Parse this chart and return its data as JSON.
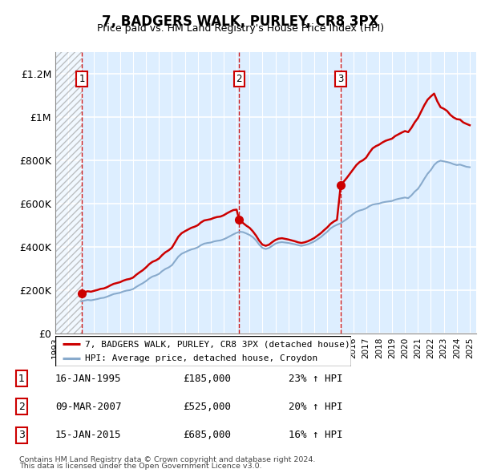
{
  "title": "7, BADGERS WALK, PURLEY, CR8 3PX",
  "subtitle": "Price paid vs. HM Land Registry's House Price Index (HPI)",
  "ylim": [
    0,
    1300000
  ],
  "xlim_start": 1993.0,
  "xlim_end": 2025.5,
  "yticks": [
    0,
    200000,
    400000,
    600000,
    800000,
    1000000,
    1200000
  ],
  "ytick_labels": [
    "£0",
    "£200K",
    "£400K",
    "£600K",
    "£800K",
    "£1M",
    "£1.2M"
  ],
  "sales": [
    {
      "date": "16-JAN-1995",
      "year": 1995.04,
      "price": 185000,
      "label": "1",
      "pct": "23%",
      "arrow": "↑"
    },
    {
      "date": "09-MAR-2007",
      "year": 2007.19,
      "price": 525000,
      "label": "2",
      "pct": "20%",
      "arrow": "↑"
    },
    {
      "date": "15-JAN-2015",
      "year": 2015.04,
      "price": 685000,
      "label": "3",
      "pct": "16%",
      "arrow": "↑"
    }
  ],
  "property_line_color": "#cc0000",
  "hpi_line_color": "#88aacc",
  "sale_marker_color": "#cc0000",
  "vline_color": "#cc0000",
  "bg_color": "#ddeeff",
  "grid_color": "#ffffff",
  "legend_line1": "7, BADGERS WALK, PURLEY, CR8 3PX (detached house)",
  "legend_line2": "HPI: Average price, detached house, Croydon",
  "footnote1": "Contains HM Land Registry data © Crown copyright and database right 2024.",
  "footnote2": "This data is licensed under the Open Government Licence v3.0.",
  "hpi_data": [
    [
      1995.0,
      148000
    ],
    [
      1995.25,
      152000
    ],
    [
      1995.5,
      155000
    ],
    [
      1995.75,
      153000
    ],
    [
      1996.0,
      156000
    ],
    [
      1996.25,
      159000
    ],
    [
      1996.5,
      163000
    ],
    [
      1996.75,
      165000
    ],
    [
      1997.0,
      170000
    ],
    [
      1997.25,
      176000
    ],
    [
      1997.5,
      182000
    ],
    [
      1997.75,
      185000
    ],
    [
      1998.0,
      188000
    ],
    [
      1998.25,
      194000
    ],
    [
      1998.5,
      198000
    ],
    [
      1998.75,
      200000
    ],
    [
      1999.0,
      205000
    ],
    [
      1999.25,
      215000
    ],
    [
      1999.5,
      224000
    ],
    [
      1999.75,
      232000
    ],
    [
      2000.0,
      242000
    ],
    [
      2000.25,
      254000
    ],
    [
      2000.5,
      263000
    ],
    [
      2000.75,
      268000
    ],
    [
      2001.0,
      275000
    ],
    [
      2001.25,
      288000
    ],
    [
      2001.5,
      298000
    ],
    [
      2001.75,
      305000
    ],
    [
      2002.0,
      315000
    ],
    [
      2002.25,
      335000
    ],
    [
      2002.5,
      355000
    ],
    [
      2002.75,
      368000
    ],
    [
      2003.0,
      375000
    ],
    [
      2003.25,
      382000
    ],
    [
      2003.5,
      388000
    ],
    [
      2003.75,
      392000
    ],
    [
      2004.0,
      398000
    ],
    [
      2004.25,
      408000
    ],
    [
      2004.5,
      415000
    ],
    [
      2004.75,
      418000
    ],
    [
      2005.0,
      420000
    ],
    [
      2005.25,
      425000
    ],
    [
      2005.5,
      428000
    ],
    [
      2005.75,
      430000
    ],
    [
      2006.0,
      435000
    ],
    [
      2006.25,
      442000
    ],
    [
      2006.5,
      450000
    ],
    [
      2006.75,
      458000
    ],
    [
      2007.0,
      465000
    ],
    [
      2007.25,
      470000
    ],
    [
      2007.5,
      468000
    ],
    [
      2007.75,
      462000
    ],
    [
      2008.0,
      455000
    ],
    [
      2008.25,
      445000
    ],
    [
      2008.5,
      430000
    ],
    [
      2008.75,
      410000
    ],
    [
      2009.0,
      395000
    ],
    [
      2009.25,
      390000
    ],
    [
      2009.5,
      395000
    ],
    [
      2009.75,
      405000
    ],
    [
      2010.0,
      415000
    ],
    [
      2010.25,
      420000
    ],
    [
      2010.5,
      422000
    ],
    [
      2010.75,
      420000
    ],
    [
      2011.0,
      418000
    ],
    [
      2011.25,
      415000
    ],
    [
      2011.5,
      412000
    ],
    [
      2011.75,
      408000
    ],
    [
      2012.0,
      405000
    ],
    [
      2012.25,
      408000
    ],
    [
      2012.5,
      412000
    ],
    [
      2012.75,
      418000
    ],
    [
      2013.0,
      425000
    ],
    [
      2013.25,
      435000
    ],
    [
      2013.5,
      445000
    ],
    [
      2013.75,
      458000
    ],
    [
      2014.0,
      470000
    ],
    [
      2014.25,
      485000
    ],
    [
      2014.5,
      495000
    ],
    [
      2014.75,
      502000
    ],
    [
      2015.0,
      508000
    ],
    [
      2015.25,
      518000
    ],
    [
      2015.5,
      528000
    ],
    [
      2015.75,
      540000
    ],
    [
      2016.0,
      552000
    ],
    [
      2016.25,
      562000
    ],
    [
      2016.5,
      568000
    ],
    [
      2016.75,
      572000
    ],
    [
      2017.0,
      578000
    ],
    [
      2017.25,
      588000
    ],
    [
      2017.5,
      595000
    ],
    [
      2017.75,
      598000
    ],
    [
      2018.0,
      600000
    ],
    [
      2018.25,
      605000
    ],
    [
      2018.5,
      608000
    ],
    [
      2018.75,
      610000
    ],
    [
      2019.0,
      612000
    ],
    [
      2019.25,
      618000
    ],
    [
      2019.5,
      622000
    ],
    [
      2019.75,
      625000
    ],
    [
      2020.0,
      628000
    ],
    [
      2020.25,
      625000
    ],
    [
      2020.5,
      638000
    ],
    [
      2020.75,
      655000
    ],
    [
      2021.0,
      668000
    ],
    [
      2021.25,
      690000
    ],
    [
      2021.5,
      715000
    ],
    [
      2021.75,
      738000
    ],
    [
      2022.0,
      755000
    ],
    [
      2022.25,
      778000
    ],
    [
      2022.5,
      792000
    ],
    [
      2022.75,
      798000
    ],
    [
      2023.0,
      795000
    ],
    [
      2023.25,
      792000
    ],
    [
      2023.5,
      788000
    ],
    [
      2023.75,
      782000
    ],
    [
      2024.0,
      778000
    ],
    [
      2024.25,
      780000
    ],
    [
      2024.5,
      775000
    ],
    [
      2024.75,
      770000
    ],
    [
      2025.0,
      768000
    ]
  ],
  "prop_data": [
    [
      1995.04,
      185000
    ],
    [
      1995.25,
      191000
    ],
    [
      1995.5,
      195000
    ],
    [
      1995.75,
      193000
    ],
    [
      1996.0,
      197000
    ],
    [
      1996.25,
      201000
    ],
    [
      1996.5,
      206000
    ],
    [
      1996.75,
      208000
    ],
    [
      1997.0,
      214000
    ],
    [
      1997.25,
      222000
    ],
    [
      1997.5,
      229000
    ],
    [
      1997.75,
      233000
    ],
    [
      1998.0,
      237000
    ],
    [
      1998.25,
      244000
    ],
    [
      1998.5,
      249000
    ],
    [
      1998.75,
      252000
    ],
    [
      1999.0,
      258000
    ],
    [
      1999.25,
      271000
    ],
    [
      1999.5,
      282000
    ],
    [
      1999.75,
      292000
    ],
    [
      2000.0,
      305000
    ],
    [
      2000.25,
      320000
    ],
    [
      2000.5,
      331000
    ],
    [
      2000.75,
      337000
    ],
    [
      2001.0,
      346000
    ],
    [
      2001.25,
      362000
    ],
    [
      2001.5,
      375000
    ],
    [
      2001.75,
      384000
    ],
    [
      2002.0,
      396000
    ],
    [
      2002.25,
      421000
    ],
    [
      2002.5,
      447000
    ],
    [
      2002.75,
      463000
    ],
    [
      2003.0,
      472000
    ],
    [
      2003.25,
      480000
    ],
    [
      2003.5,
      488000
    ],
    [
      2003.75,
      493000
    ],
    [
      2004.0,
      500000
    ],
    [
      2004.25,
      513000
    ],
    [
      2004.5,
      522000
    ],
    [
      2004.75,
      525000
    ],
    [
      2005.0,
      528000
    ],
    [
      2005.25,
      534000
    ],
    [
      2005.5,
      538000
    ],
    [
      2005.75,
      540000
    ],
    [
      2006.0,
      546000
    ],
    [
      2006.25,
      555000
    ],
    [
      2006.5,
      563000
    ],
    [
      2006.75,
      570000
    ],
    [
      2007.0,
      572000
    ],
    [
      2007.19,
      525000
    ],
    [
      2007.5,
      510000
    ],
    [
      2007.75,
      498000
    ],
    [
      2008.0,
      488000
    ],
    [
      2008.25,
      472000
    ],
    [
      2008.5,
      452000
    ],
    [
      2008.75,
      428000
    ],
    [
      2009.0,
      410000
    ],
    [
      2009.25,
      405000
    ],
    [
      2009.5,
      410000
    ],
    [
      2009.75,
      422000
    ],
    [
      2010.0,
      432000
    ],
    [
      2010.25,
      438000
    ],
    [
      2010.5,
      440000
    ],
    [
      2010.75,
      437000
    ],
    [
      2011.0,
      434000
    ],
    [
      2011.25,
      430000
    ],
    [
      2011.5,
      426000
    ],
    [
      2011.75,
      421000
    ],
    [
      2012.0,
      418000
    ],
    [
      2012.25,
      421000
    ],
    [
      2012.5,
      426000
    ],
    [
      2012.75,
      433000
    ],
    [
      2013.0,
      441000
    ],
    [
      2013.25,
      452000
    ],
    [
      2013.5,
      463000
    ],
    [
      2013.75,
      477000
    ],
    [
      2014.0,
      490000
    ],
    [
      2014.25,
      506000
    ],
    [
      2014.5,
      517000
    ],
    [
      2014.75,
      525000
    ],
    [
      2015.04,
      685000
    ],
    [
      2015.25,
      700000
    ],
    [
      2015.5,
      718000
    ],
    [
      2015.75,
      738000
    ],
    [
      2016.0,
      758000
    ],
    [
      2016.25,
      778000
    ],
    [
      2016.5,
      792000
    ],
    [
      2016.75,
      800000
    ],
    [
      2017.0,
      812000
    ],
    [
      2017.25,
      835000
    ],
    [
      2017.5,
      855000
    ],
    [
      2017.75,
      865000
    ],
    [
      2018.0,
      872000
    ],
    [
      2018.25,
      882000
    ],
    [
      2018.5,
      890000
    ],
    [
      2018.75,
      895000
    ],
    [
      2019.0,
      900000
    ],
    [
      2019.25,
      912000
    ],
    [
      2019.5,
      920000
    ],
    [
      2019.75,
      928000
    ],
    [
      2020.0,
      935000
    ],
    [
      2020.25,
      930000
    ],
    [
      2020.5,
      950000
    ],
    [
      2020.75,
      975000
    ],
    [
      2021.0,
      995000
    ],
    [
      2021.25,
      1025000
    ],
    [
      2021.5,
      1055000
    ],
    [
      2021.75,
      1080000
    ],
    [
      2022.0,
      1095000
    ],
    [
      2022.25,
      1108000
    ],
    [
      2022.5,
      1072000
    ],
    [
      2022.75,
      1045000
    ],
    [
      2023.0,
      1038000
    ],
    [
      2023.25,
      1028000
    ],
    [
      2023.5,
      1010000
    ],
    [
      2023.75,
      998000
    ],
    [
      2024.0,
      990000
    ],
    [
      2024.25,
      988000
    ],
    [
      2024.5,
      975000
    ],
    [
      2024.75,
      968000
    ],
    [
      2025.0,
      962000
    ]
  ]
}
